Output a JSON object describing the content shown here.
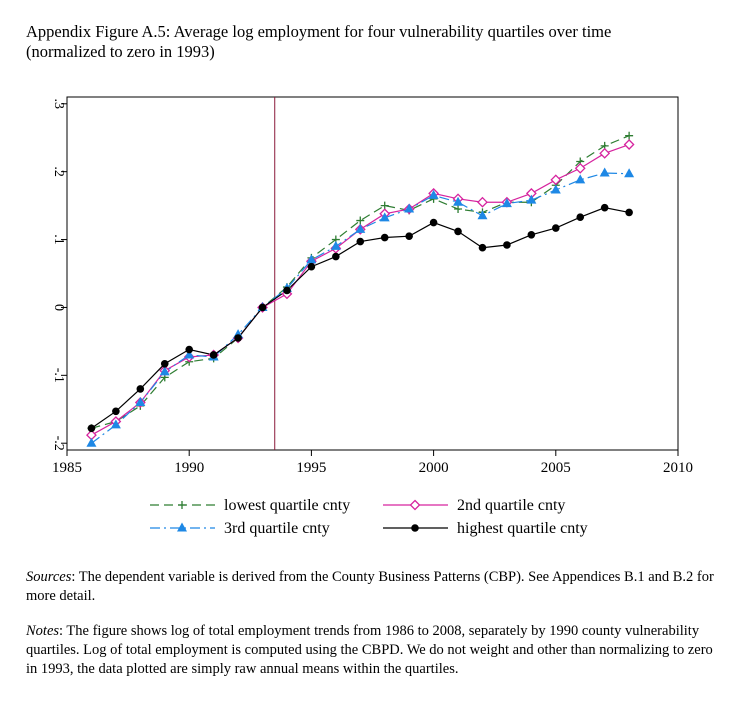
{
  "caption": {
    "line1": "Appendix Figure A.5: Average log employment for four vulnerability quartiles over time",
    "line2": "(normalized to zero in 1993)"
  },
  "chart_data": {
    "type": "line",
    "title": "",
    "xlabel": "",
    "ylabel": "",
    "xlim": [
      1985,
      2010
    ],
    "ylim": [
      -0.21,
      0.31
    ],
    "x_ticks": [
      1985,
      1990,
      1995,
      2000,
      2005,
      2010
    ],
    "y_ticks": [
      -0.2,
      -0.1,
      0,
      0.1,
      0.2,
      0.3
    ],
    "y_tick_labels": [
      "-.2",
      "-.1",
      "0",
      ".1",
      ".2",
      ".3"
    ],
    "reference_line_x": 1993.5,
    "grid": false,
    "legend_position": "bottom",
    "x": [
      1986,
      1987,
      1988,
      1989,
      1990,
      1991,
      1992,
      1993,
      1994,
      1995,
      1996,
      1997,
      1998,
      1999,
      2000,
      2001,
      2002,
      2003,
      2004,
      2005,
      2006,
      2007,
      2008
    ],
    "series": [
      {
        "name": "lowest quartile cnty",
        "color": "#2e7d32",
        "style": "dashed",
        "marker": "plus",
        "values": [
          -0.178,
          -0.168,
          -0.145,
          -0.103,
          -0.08,
          -0.075,
          -0.045,
          0.0,
          0.03,
          0.073,
          0.1,
          0.128,
          0.15,
          0.143,
          0.16,
          0.145,
          0.14,
          0.155,
          0.155,
          0.18,
          0.215,
          0.238,
          0.253
        ]
      },
      {
        "name": "2nd quartile cnty",
        "color": "#d6249f",
        "style": "solid",
        "marker": "diamond",
        "values": [
          -0.188,
          -0.168,
          -0.14,
          -0.093,
          -0.073,
          -0.07,
          -0.045,
          0.0,
          0.02,
          0.068,
          0.087,
          0.115,
          0.138,
          0.145,
          0.168,
          0.16,
          0.155,
          0.155,
          0.168,
          0.188,
          0.205,
          0.227,
          0.24
        ]
      },
      {
        "name": "3rd quartile cnty",
        "color": "#1e88e5",
        "style": "dashdot",
        "marker": "triangle",
        "values": [
          -0.2,
          -0.173,
          -0.14,
          -0.095,
          -0.07,
          -0.073,
          -0.04,
          0.0,
          0.028,
          0.07,
          0.09,
          0.115,
          0.132,
          0.145,
          0.165,
          0.155,
          0.135,
          0.153,
          0.158,
          0.173,
          0.188,
          0.198,
          0.197
        ]
      },
      {
        "name": "highest quartile cnty",
        "color": "#000000",
        "style": "solid",
        "marker": "circle",
        "values": [
          -0.178,
          -0.153,
          -0.12,
          -0.083,
          -0.062,
          -0.07,
          -0.045,
          0.0,
          0.025,
          0.06,
          0.075,
          0.097,
          0.103,
          0.105,
          0.125,
          0.112,
          0.088,
          0.092,
          0.107,
          0.117,
          0.133,
          0.147,
          0.14
        ]
      }
    ]
  },
  "notes": {
    "sources_label": "Sources",
    "sources_text": ": The dependent variable is derived from the County Business Patterns (CBP). See Appendices B.1 and B.2 for more detail.",
    "notes_label": "Notes",
    "notes_text": ": The figure shows log of total employment trends from 1986 to 2008, separately by 1990 county vulnerability quartiles. Log of total employment is computed using the CBPD. We do not weight and other than normalizing to zero in 1993, the data plotted are simply raw annual means within the quartiles."
  }
}
